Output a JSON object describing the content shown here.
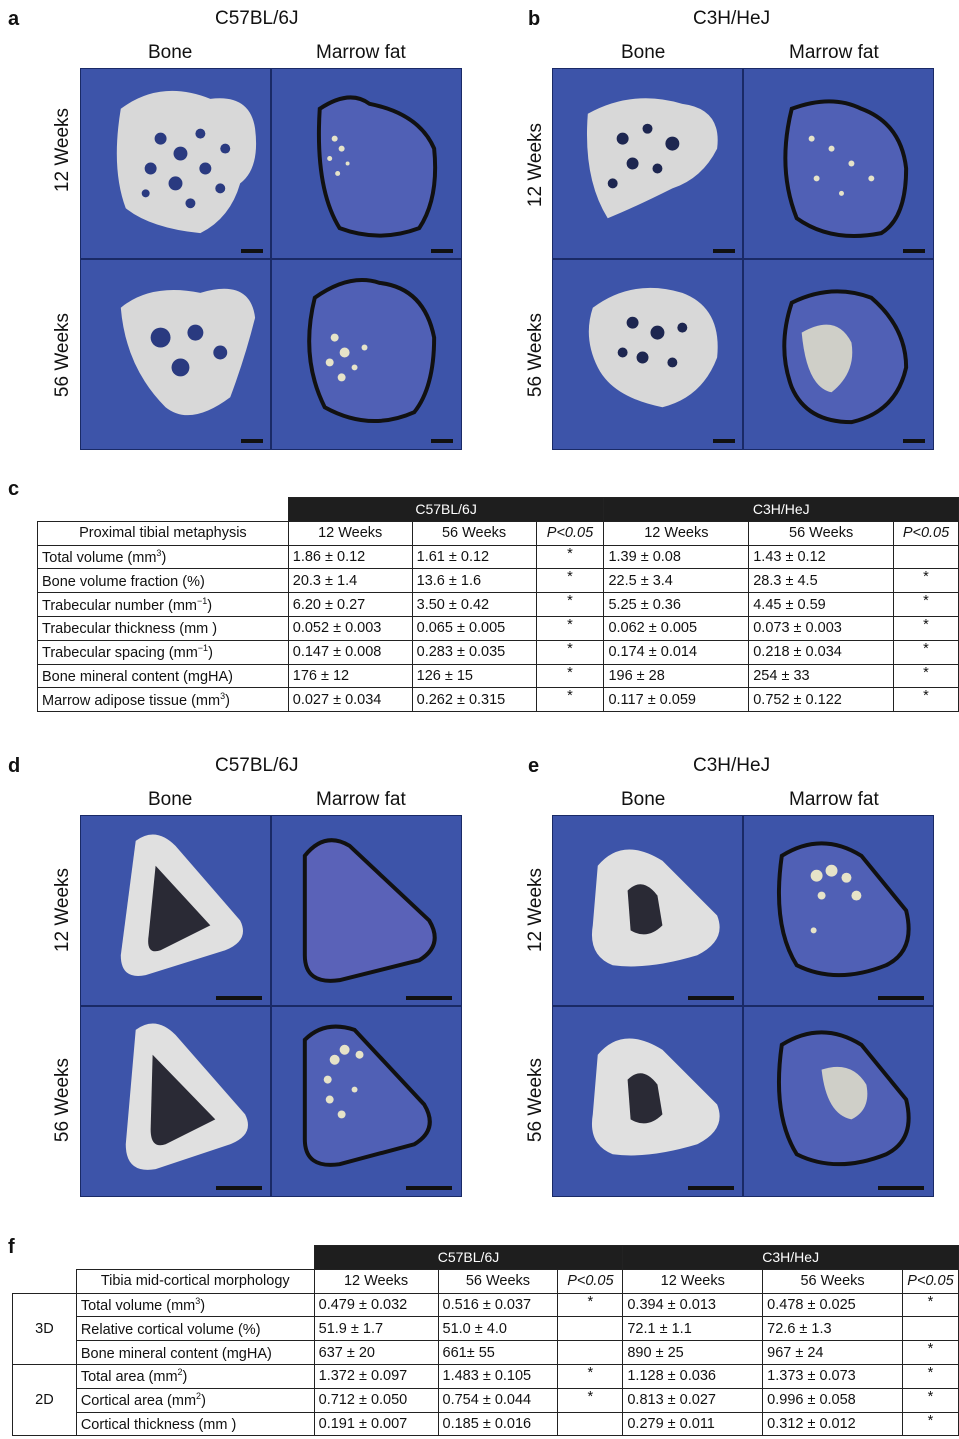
{
  "panels": {
    "a": {
      "letter": "a",
      "strain": "C57BL/6J",
      "col_bone": "Bone",
      "col_fat": "Marrow fat",
      "row_12": "12 Weeks",
      "row_56": "56 Weeks"
    },
    "b": {
      "letter": "b",
      "strain": "C3H/HeJ",
      "col_bone": "Bone",
      "col_fat": "Marrow fat",
      "row_12": "12 Weeks",
      "row_56": "56 Weeks"
    },
    "c": {
      "letter": "c"
    },
    "d": {
      "letter": "d",
      "strain": "C57BL/6J",
      "col_bone": "Bone",
      "col_fat": "Marrow fat",
      "row_12": "12 Weeks",
      "row_56": "56 Weeks"
    },
    "e": {
      "letter": "e",
      "strain": "C3H/HeJ",
      "col_bone": "Bone",
      "col_fat": "Marrow fat",
      "row_12": "12 Weeks",
      "row_56": "56 Weeks"
    },
    "f": {
      "letter": "f"
    }
  },
  "table_c": {
    "group1": "C57BL/6J",
    "group2": "C3H/HeJ",
    "header": [
      "Proximal tibial metaphysis",
      "12 Weeks",
      "56 Weeks",
      "P<0.05",
      "12 Weeks",
      "56 Weeks",
      "P<0.05"
    ],
    "rows": [
      {
        "label": "Total volume (mm",
        "sup": "3",
        "tail": ")",
        "v": [
          "1.86 ± 0.12",
          "1.61 ± 0.12",
          "*",
          "1.39 ± 0.08",
          "1.43 ± 0.12",
          ""
        ]
      },
      {
        "label": "Bone volume fraction (%)",
        "sup": "",
        "tail": "",
        "v": [
          "20.3 ± 1.4",
          "13.6 ± 1.6",
          "*",
          "22.5 ± 3.4",
          "28.3 ± 4.5",
          "*"
        ]
      },
      {
        "label": "Trabecular number (mm",
        "sup": "−1",
        "tail": ")",
        "v": [
          "6.20 ± 0.27",
          "3.50 ± 0.42",
          "*",
          "5.25 ± 0.36",
          "4.45 ± 0.59",
          "*"
        ]
      },
      {
        "label": "Trabecular thickness (mm )",
        "sup": "",
        "tail": "",
        "v": [
          "0.052 ± 0.003",
          "0.065 ± 0.005",
          "*",
          "0.062 ± 0.005",
          "0.073 ± 0.003",
          "*"
        ]
      },
      {
        "label": "Trabecular spacing (mm",
        "sup": "−1",
        "tail": ")",
        "v": [
          "0.147 ± 0.008",
          "0.283 ± 0.035",
          "*",
          "0.174 ± 0.014",
          "0.218 ± 0.034",
          "*"
        ]
      },
      {
        "label": "Bone mineral content (mgHA)",
        "sup": "",
        "tail": "",
        "v": [
          "176 ± 12",
          "126 ± 15",
          "*",
          "196 ± 28",
          "254 ± 33",
          "*"
        ]
      },
      {
        "label": "Marrow adipose tissue (mm",
        "sup": "3",
        "tail": ")",
        "v": [
          "0.027 ± 0.034",
          "0.262 ± 0.315",
          "*",
          "0.117 ± 0.059",
          "0.752 ± 0.122",
          "*"
        ]
      }
    ]
  },
  "table_f": {
    "group1": "C57BL/6J",
    "group2": "C3H/HeJ",
    "header": [
      "Tibia mid-cortical morphology",
      "12 Weeks",
      "56 Weeks",
      "P<0.05",
      "12 Weeks",
      "56 Weeks",
      "P<0.05"
    ],
    "group_3d": "3D",
    "group_2d": "2D",
    "rows": [
      {
        "label": "Total volume (mm",
        "sup": "3",
        "tail": ")",
        "v": [
          "0.479 ± 0.032",
          "0.516 ± 0.037",
          "*",
          "0.394 ± 0.013",
          "0.478 ± 0.025",
          "*"
        ]
      },
      {
        "label": "Relative cortical volume (%)",
        "sup": "",
        "tail": "",
        "v": [
          "51.9 ± 1.7",
          "51.0 ± 4.0",
          "",
          "72.1 ± 1.1",
          "72.6 ± 1.3",
          ""
        ]
      },
      {
        "label": "Bone mineral content (mgHA)",
        "sup": "",
        "tail": "",
        "v": [
          "637 ± 20",
          "661± 55",
          "",
          "890 ± 25",
          "967 ± 24",
          "*"
        ]
      },
      {
        "label": "Total area (mm",
        "sup": "2",
        "tail": ")",
        "v": [
          "1.372 ± 0.097",
          "1.483 ± 0.105",
          "*",
          "1.128 ± 0.036",
          "1.373 ± 0.073",
          "*"
        ]
      },
      {
        "label": "Cortical area (mm",
        "sup": "2",
        "tail": ")",
        "v": [
          "0.712 ± 0.050",
          "0.754 ± 0.044",
          "*",
          "0.813 ± 0.027",
          "0.996 ± 0.058",
          "*"
        ]
      },
      {
        "label": "Cortical thickness (mm )",
        "sup": "",
        "tail": "",
        "v": [
          "0.191 ± 0.007",
          "0.185 ± 0.016",
          "",
          "0.279 ± 0.011",
          "0.312 ± 0.012",
          "*"
        ]
      }
    ]
  }
}
